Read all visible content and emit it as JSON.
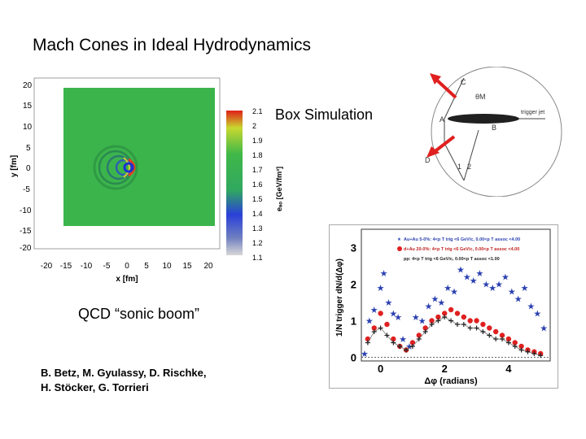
{
  "slide": {
    "title": "Mach Cones in Ideal Hydrodynamics",
    "box_simulation": "Box Simulation",
    "sonic_boom": "QCD “sonic boom”",
    "authors_line1": "B. Betz, M. Gyulassy, D. Rischke,",
    "authors_line2": "H. Stöcker, G. Torrieri"
  },
  "sim_plot": {
    "y_ticks": [
      "20",
      "15",
      "10",
      "5",
      "0",
      "-5",
      "-10",
      "-15",
      "-20"
    ],
    "x_ticks": [
      "-20",
      "-15",
      "-10",
      "-5",
      "0",
      "5",
      "10",
      "15",
      "20"
    ],
    "xlabel": "x [fm]",
    "ylabel": "y [fm]",
    "colorbar_ticks": [
      "2.1",
      "2",
      "1.9",
      "1.8",
      "1.7",
      "1.6",
      "1.5",
      "1.4",
      "1.3",
      "1.2",
      "1.1"
    ],
    "colorbar_label": "eₐₒ [GeV/fm³]",
    "colors": {
      "field": "#38b04a",
      "hot": "#e03020",
      "cold": "#2a3fd0"
    }
  },
  "diagram": {
    "labels": {
      "c": "C",
      "theta": "θM",
      "trigger": "trigger jet",
      "a": "A",
      "b": "B",
      "d": "D",
      "one": "1",
      "two": "2"
    },
    "arrow_color": "#e02020"
  },
  "chart_data": {
    "type": "scatter",
    "ylabel": "1/N trigger dN/d(Δφ)",
    "xlabel": "Δφ (radians)",
    "x_ticks": [
      "0",
      "2",
      "4"
    ],
    "y_ticks": [
      "0",
      "1",
      "2",
      "3"
    ],
    "xlim": [
      -0.6,
      5.3
    ],
    "ylim": [
      -0.1,
      3.5
    ],
    "legend_position": "top-right",
    "legend": [
      "Au+Au 5-0%: 4<p T trig <6 GeV/c, 0.00<p T assoc <4.00",
      "d+Au 20-0%: 4<p T trig <6 GeV/c, 0.00<p T assoc <4.00",
      "pp: 4<p T trig <6 GeV/c, 0.00<p T assoc <1.00"
    ],
    "series": [
      {
        "name": "Au+Au 5-0%",
        "marker": "star",
        "color": "#2a3fb0",
        "x": [
          -0.5,
          -0.35,
          -0.2,
          0.0,
          0.1,
          0.25,
          0.4,
          0.55,
          0.7,
          0.9,
          1.1,
          1.3,
          1.5,
          1.7,
          1.9,
          2.1,
          2.3,
          2.5,
          2.7,
          2.9,
          3.1,
          3.3,
          3.5,
          3.7,
          3.9,
          4.1,
          4.3,
          4.5,
          4.7,
          4.9,
          5.1
        ],
        "y": [
          0.1,
          1.0,
          1.3,
          1.9,
          2.3,
          1.5,
          1.2,
          1.1,
          0.5,
          0.3,
          1.1,
          1.0,
          1.4,
          1.6,
          1.5,
          1.9,
          1.8,
          2.4,
          2.2,
          2.1,
          2.3,
          2.0,
          1.9,
          2.0,
          2.2,
          1.8,
          1.6,
          1.9,
          1.4,
          1.2,
          0.8
        ]
      },
      {
        "name": "d+Au 20-0%",
        "marker": "circle",
        "color": "#e02020",
        "x": [
          -0.4,
          -0.2,
          0.0,
          0.2,
          0.4,
          0.6,
          0.8,
          1.0,
          1.2,
          1.4,
          1.6,
          1.8,
          2.0,
          2.2,
          2.4,
          2.6,
          2.8,
          3.0,
          3.2,
          3.4,
          3.6,
          3.8,
          4.0,
          4.2,
          4.4,
          4.6,
          4.8,
          5.0
        ],
        "y": [
          0.5,
          0.8,
          1.2,
          0.9,
          0.5,
          0.3,
          0.2,
          0.4,
          0.6,
          0.8,
          1.0,
          1.1,
          1.2,
          1.3,
          1.2,
          1.1,
          1.0,
          1.0,
          0.9,
          0.8,
          0.7,
          0.6,
          0.5,
          0.4,
          0.3,
          0.2,
          0.15,
          0.1
        ]
      },
      {
        "name": "pp",
        "marker": "cross",
        "color": "#222222",
        "x": [
          -0.4,
          -0.2,
          0.0,
          0.2,
          0.4,
          0.6,
          0.8,
          1.0,
          1.2,
          1.4,
          1.6,
          1.8,
          2.0,
          2.2,
          2.4,
          2.6,
          2.8,
          3.0,
          3.2,
          3.4,
          3.6,
          3.8,
          4.0,
          4.2,
          4.4,
          4.6,
          4.8,
          5.0
        ],
        "y": [
          0.4,
          0.7,
          0.8,
          0.6,
          0.4,
          0.3,
          0.2,
          0.3,
          0.5,
          0.7,
          0.9,
          1.0,
          1.1,
          1.0,
          0.9,
          0.9,
          0.8,
          0.8,
          0.7,
          0.6,
          0.5,
          0.5,
          0.4,
          0.3,
          0.2,
          0.15,
          0.1,
          0.05
        ]
      }
    ]
  }
}
